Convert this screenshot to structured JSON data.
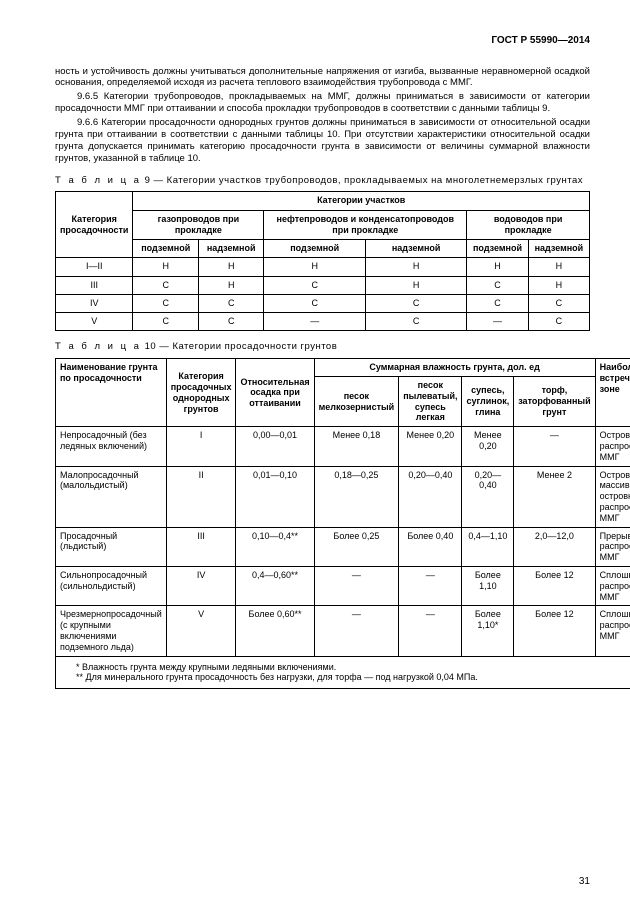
{
  "header": "ГОСТ Р 55990—2014",
  "paragraphs": {
    "p0": "ность и устойчивость должны учитываться дополнительные напряжения от изгиба, вызванные неравномерной осадкой основания, определяемой исходя из расчета теплового взаимодействия трубопровода с ММГ.",
    "p1": "9.6.5 Категории трубопроводов, прокладываемых на ММГ, должны приниматься в зависимости от категории просадочности ММГ при оттаивании и способа прокладки трубопроводов в соответствии с данными таблицы 9.",
    "p2": "9.6.6 Категории просадочности однородных грунтов должны приниматься в зависимости от относительной осадки грунта при оттаивании в соответствии с данными таблицы 10. При отсутствии характеристики относительной осадки грунта допускается принимать категорию просадочности грунта в зависимости от величины суммарной влажности грунтов, указанной в таблице 10."
  },
  "table9": {
    "caption_prefix": "Т а б л и ц а",
    "caption_num": "9",
    "caption_rest": " — Категории участков трубопроводов, прокладываемых на многолетнемерзлых грунтах",
    "h_cat": "Категория просадочности",
    "h_sections": "Категории участков",
    "h_gas": "газопроводов при прокладке",
    "h_oil": "нефтепроводов и конденсатопроводов при прокладке",
    "h_water": "водоводов при прокладке",
    "h_under": "подземной",
    "h_above": "надземной",
    "rows": [
      {
        "c0": "I—II",
        "c1": "Н",
        "c2": "Н",
        "c3": "Н",
        "c4": "Н",
        "c5": "Н",
        "c6": "Н"
      },
      {
        "c0": "III",
        "c1": "С",
        "c2": "Н",
        "c3": "С",
        "c4": "Н",
        "c5": "С",
        "c6": "Н"
      },
      {
        "c0": "IV",
        "c1": "С",
        "c2": "С",
        "c3": "С",
        "c4": "С",
        "c5": "С",
        "c6": "С"
      },
      {
        "c0": "V",
        "c1": "С",
        "c2": "С",
        "c3": "—",
        "c4": "С",
        "c5": "—",
        "c6": "С"
      }
    ]
  },
  "table10": {
    "caption_prefix": "Т а б л и ц а",
    "caption_num": "10",
    "caption_rest": " — Категории просадочности грунтов",
    "h_name": "Наименование грунта по просадочности",
    "h_cat": "Категория просадочных однородных грунтов",
    "h_rel": "Относительная осадка при оттаивании",
    "h_moist": "Суммарная влажность грунта, дол. ед",
    "h_sand1": "песок мелкозернистый",
    "h_sand2": "песок пылеватый, супесь легкая",
    "h_loam": "супесь, суглинок, глина",
    "h_peat": "торф, заторфованный грунт",
    "h_zone": "Наиболее часто встречается в зоне",
    "rows": [
      {
        "name": "Непросадочный (без ледяных включений)",
        "cat": "I",
        "rel": "0,00—0,01",
        "s1": "Менее 0,18",
        "s2": "Менее 0,20",
        "loam": "Менее 0,20",
        "peat": "—",
        "zone": "Островного распространения ММГ"
      },
      {
        "name": "Малопросадочный (малольдистый)",
        "cat": "II",
        "rel": "0,01—0,10",
        "s1": "0,18—0,25",
        "s2": "0,20—0,40",
        "loam": "0,20—0,40",
        "peat": "Менее 2",
        "zone": "Островного и массивно-островного распространения ММГ"
      },
      {
        "name": "Просадочный (льдистый)",
        "cat": "III",
        "rel": "0,10—0,4**",
        "s1": "Более 0,25",
        "s2": "Более 0,40",
        "loam": "0,4—1,10",
        "peat": "2,0—12,0",
        "zone": "Прерывистого распространения ММГ"
      },
      {
        "name": "Сильнопросадочный (сильнольдистый)",
        "cat": "IV",
        "rel": "0,4—0,60**",
        "s1": "—",
        "s2": "—",
        "loam": "Более 1,10",
        "peat": "Более 12",
        "zone": "Сплошного распространения ММГ"
      },
      {
        "name": "Чрезмернопросадочный (с крупными включениями подземного льда)",
        "cat": "V",
        "rel": "Более 0,60**",
        "s1": "—",
        "s2": "—",
        "loam": "Более 1,10*",
        "peat": "Более 12",
        "zone": "Сплошного распространения ММГ"
      }
    ],
    "footnote1": "* Влажность грунта между крупными ледяными включениями.",
    "footnote2": "** Для минерального грунта просадочность без нагрузки, для торфа — под нагрузкой 0,04 МПа."
  },
  "page_number": "31"
}
